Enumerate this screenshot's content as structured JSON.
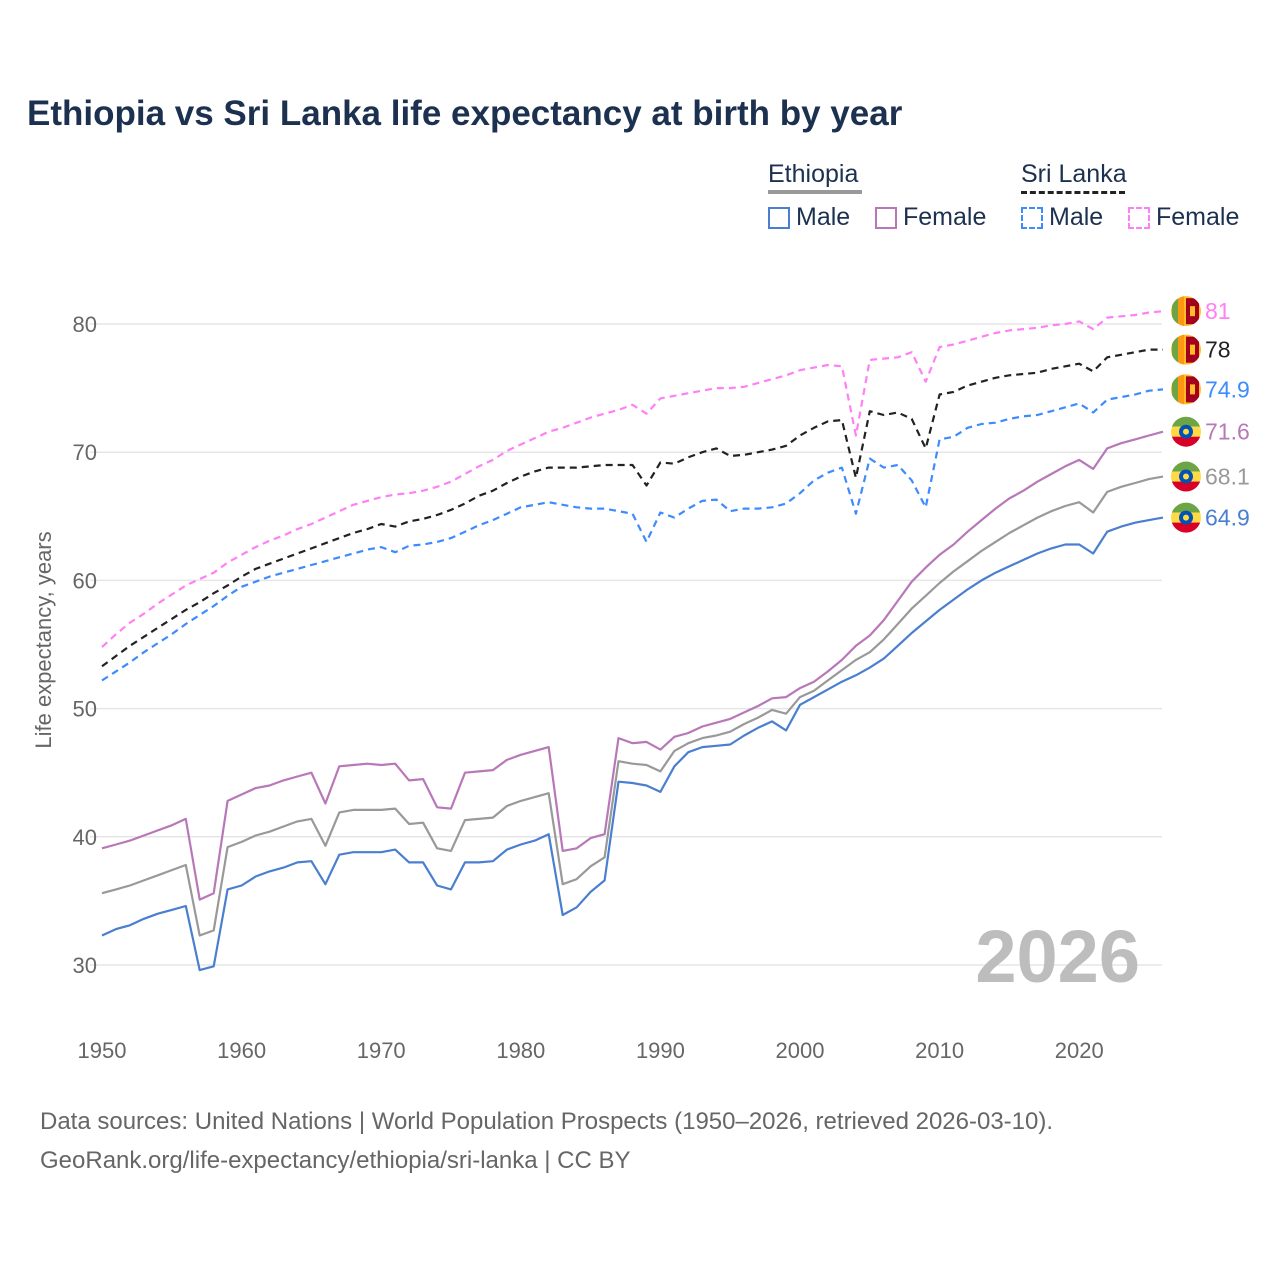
{
  "title": "Ethiopia vs Sri Lanka life expectancy at birth by year",
  "legend": {
    "groups": [
      {
        "country": "Ethiopia",
        "items": [
          "Male",
          "Female"
        ]
      },
      {
        "country": "Sri Lanka",
        "items": [
          "Male",
          "Female"
        ]
      }
    ]
  },
  "footer": {
    "line1": "Data sources: United Nations | World Population Prospects (1950–2026, retrieved 2026-03-10).",
    "line2": "GeoRank.org/life-expectancy/ethiopia/sri-lanka | CC BY"
  },
  "chart_data": {
    "type": "line",
    "title": "Ethiopia vs Sri Lanka life expectancy at birth by year",
    "xlabel": "",
    "ylabel": "Life expectancy, years",
    "xlim": [
      1950,
      2026
    ],
    "ylim": [
      25,
      85
    ],
    "xticks": [
      "1950",
      "1960",
      "1970",
      "1980",
      "1990",
      "2000",
      "2010",
      "2020"
    ],
    "yticks": [
      "30",
      "40",
      "50",
      "60",
      "70",
      "80"
    ],
    "current_year_label": "2026",
    "grid": true,
    "legend_position": "top-right",
    "x_start": 1950,
    "series": [
      {
        "name": "Sri Lanka Female",
        "country": "Sri Lanka",
        "flag": "sri-lanka",
        "color": "#ff80f4",
        "dashed": true,
        "end_label": "81",
        "values": [
          54.8,
          55.8,
          56.7,
          57.4,
          58.2,
          58.9,
          59.6,
          60.1,
          60.6,
          61.4,
          62.0,
          62.6,
          63.1,
          63.5,
          64.0,
          64.4,
          64.9,
          65.4,
          65.9,
          66.2,
          66.5,
          66.7,
          66.8,
          67.0,
          67.3,
          67.7,
          68.3,
          68.9,
          69.4,
          70.1,
          70.6,
          71.1,
          71.6,
          71.9,
          72.3,
          72.7,
          73.0,
          73.3,
          73.7,
          73.0,
          74.2,
          74.4,
          74.6,
          74.8,
          75.0,
          75.0,
          75.1,
          75.4,
          75.7,
          76.0,
          76.4,
          76.6,
          76.8,
          76.7,
          71.3,
          77.2,
          77.3,
          77.4,
          77.8,
          75.5,
          78.2,
          78.4,
          78.7,
          79.0,
          79.3,
          79.5,
          79.6,
          79.7,
          79.9,
          80.0,
          80.2,
          79.6,
          80.5,
          80.6,
          80.7,
          80.9,
          81.0
        ]
      },
      {
        "name": "Sri Lanka Total",
        "country": "Sri Lanka",
        "flag": "sri-lanka",
        "color": "#222222",
        "dashed": true,
        "end_label": "78",
        "values": [
          53.3,
          54.1,
          54.9,
          55.6,
          56.3,
          57.0,
          57.7,
          58.3,
          59.0,
          59.6,
          60.3,
          60.9,
          61.3,
          61.7,
          62.1,
          62.5,
          62.9,
          63.3,
          63.7,
          64.0,
          64.4,
          64.2,
          64.6,
          64.8,
          65.1,
          65.5,
          66.0,
          66.6,
          67.0,
          67.6,
          68.1,
          68.5,
          68.8,
          68.8,
          68.8,
          68.9,
          69.0,
          69.0,
          69.0,
          67.4,
          69.2,
          69.1,
          69.6,
          70.0,
          70.3,
          69.7,
          69.8,
          70.0,
          70.2,
          70.5,
          71.3,
          71.9,
          72.4,
          72.5,
          68.0,
          73.2,
          72.9,
          73.1,
          72.6,
          70.3,
          74.5,
          74.7,
          75.2,
          75.5,
          75.8,
          76.0,
          76.1,
          76.2,
          76.5,
          76.7,
          76.9,
          76.3,
          77.4,
          77.6,
          77.8,
          78.0,
          78.0
        ]
      },
      {
        "name": "Sri Lanka Male",
        "country": "Sri Lanka",
        "flag": "sri-lanka",
        "color": "#3d8bff",
        "dashed": true,
        "end_label": "74.9",
        "values": [
          52.2,
          52.9,
          53.6,
          54.4,
          55.1,
          55.8,
          56.6,
          57.3,
          58.0,
          58.8,
          59.5,
          59.9,
          60.3,
          60.6,
          60.9,
          61.2,
          61.5,
          61.8,
          62.1,
          62.4,
          62.6,
          62.2,
          62.7,
          62.8,
          63.0,
          63.3,
          63.8,
          64.3,
          64.7,
          65.2,
          65.7,
          65.9,
          66.1,
          65.9,
          65.7,
          65.6,
          65.6,
          65.4,
          65.2,
          63.0,
          65.3,
          64.9,
          65.6,
          66.2,
          66.3,
          65.4,
          65.6,
          65.6,
          65.7,
          66.0,
          66.8,
          67.8,
          68.4,
          68.8,
          65.2,
          69.5,
          68.8,
          69.0,
          67.8,
          65.7,
          71.0,
          71.2,
          71.9,
          72.2,
          72.3,
          72.6,
          72.8,
          72.9,
          73.2,
          73.5,
          73.8,
          73.1,
          74.1,
          74.3,
          74.5,
          74.8,
          74.9
        ]
      },
      {
        "name": "Ethiopia Female",
        "country": "Ethiopia",
        "flag": "ethiopia",
        "color": "#b878b8",
        "dashed": false,
        "end_label": "71.6",
        "values": [
          39.1,
          39.4,
          39.7,
          40.1,
          40.5,
          40.9,
          41.4,
          35.1,
          35.6,
          42.8,
          43.3,
          43.8,
          44.0,
          44.4,
          44.7,
          45.0,
          42.6,
          45.5,
          45.6,
          45.7,
          45.6,
          45.7,
          44.4,
          44.5,
          42.3,
          42.2,
          45.0,
          45.1,
          45.2,
          46.0,
          46.4,
          46.7,
          47.0,
          38.9,
          39.1,
          39.9,
          40.2,
          47.7,
          47.3,
          47.4,
          46.8,
          47.8,
          48.1,
          48.6,
          48.9,
          49.2,
          49.7,
          50.2,
          50.8,
          50.9,
          51.6,
          52.1,
          52.9,
          53.8,
          54.9,
          55.7,
          56.9,
          58.4,
          59.9,
          61.0,
          62.0,
          62.8,
          63.8,
          64.7,
          65.6,
          66.4,
          67.0,
          67.7,
          68.3,
          68.9,
          69.4,
          68.7,
          70.3,
          70.7,
          71.0,
          71.3,
          71.6
        ]
      },
      {
        "name": "Ethiopia Total",
        "country": "Ethiopia",
        "flag": "ethiopia",
        "color": "#999999",
        "dashed": false,
        "end_label": "68.1",
        "values": [
          35.6,
          35.9,
          36.2,
          36.6,
          37.0,
          37.4,
          37.8,
          32.3,
          32.7,
          39.2,
          39.6,
          40.1,
          40.4,
          40.8,
          41.2,
          41.4,
          39.3,
          41.9,
          42.1,
          42.1,
          42.1,
          42.2,
          41.0,
          41.1,
          39.1,
          38.9,
          41.3,
          41.4,
          41.5,
          42.4,
          42.8,
          43.1,
          43.4,
          36.3,
          36.7,
          37.7,
          38.4,
          45.9,
          45.7,
          45.6,
          45.1,
          46.7,
          47.3,
          47.7,
          47.9,
          48.2,
          48.8,
          49.3,
          49.9,
          49.6,
          50.9,
          51.4,
          52.2,
          53.0,
          53.8,
          54.4,
          55.4,
          56.6,
          57.8,
          58.8,
          59.8,
          60.7,
          61.5,
          62.3,
          63.0,
          63.7,
          64.3,
          64.9,
          65.4,
          65.8,
          66.1,
          65.3,
          66.9,
          67.3,
          67.6,
          67.9,
          68.1
        ]
      },
      {
        "name": "Ethiopia Male",
        "country": "Ethiopia",
        "flag": "ethiopia",
        "color": "#4a7fd0",
        "dashed": false,
        "end_label": "64.9",
        "values": [
          32.3,
          32.8,
          33.1,
          33.6,
          34.0,
          34.3,
          34.6,
          29.6,
          29.9,
          35.9,
          36.2,
          36.9,
          37.3,
          37.6,
          38.0,
          38.1,
          36.3,
          38.6,
          38.8,
          38.8,
          38.8,
          39.0,
          38.0,
          38.0,
          36.2,
          35.9,
          38.0,
          38.0,
          38.1,
          39.0,
          39.4,
          39.7,
          40.2,
          33.9,
          34.5,
          35.7,
          36.6,
          44.3,
          44.2,
          44.0,
          43.5,
          45.5,
          46.6,
          47.0,
          47.1,
          47.2,
          47.9,
          48.5,
          49.0,
          48.3,
          50.3,
          50.9,
          51.5,
          52.1,
          52.6,
          53.2,
          53.9,
          54.9,
          55.9,
          56.8,
          57.7,
          58.5,
          59.3,
          60.0,
          60.6,
          61.1,
          61.6,
          62.1,
          62.5,
          62.8,
          62.8,
          62.1,
          63.8,
          64.2,
          64.5,
          64.7,
          64.9
        ]
      }
    ]
  }
}
